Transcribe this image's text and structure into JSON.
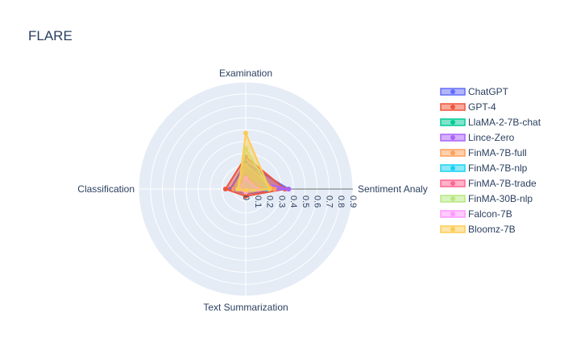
{
  "chart_data": {
    "type": "radar",
    "title": "FLARE",
    "axes": [
      "Sentiment Analysis",
      "Examination",
      "Classification",
      "Text Summarization"
    ],
    "axis_display": [
      "Sentiment Analy",
      "Examination",
      "Classification",
      "Text Summarization"
    ],
    "radial_range": [
      0,
      0.9
    ],
    "radial_ticks": [
      "0",
      "0.1",
      "0.2",
      "0.3",
      "0.4",
      "0.5",
      "0.6",
      "0.7",
      "0.8",
      "0.9"
    ],
    "legend_position": "right",
    "series": [
      {
        "name": "ChatGPT",
        "color": "#636efa",
        "values": [
          0.36,
          0.22,
          0.13,
          0.04
        ]
      },
      {
        "name": "GPT-4",
        "color": "#EF553B",
        "values": [
          0.33,
          0.27,
          0.17,
          0.06
        ]
      },
      {
        "name": "LlaMA-2-7B-chat",
        "color": "#00cc96",
        "values": [
          0.1,
          0.05,
          0.06,
          0.01
        ]
      },
      {
        "name": "Lince-Zero",
        "color": "#ab63fa",
        "values": [
          0.36,
          0.08,
          0.09,
          0.02
        ]
      },
      {
        "name": "FinMA-7B-full",
        "color": "#FFA15A",
        "values": [
          0.24,
          0.2,
          0.1,
          0.03
        ]
      },
      {
        "name": "FinMA-7B-nlp",
        "color": "#19d3f3",
        "values": [
          0.18,
          0.04,
          0.05,
          0.01
        ]
      },
      {
        "name": "FinMA-7B-trade",
        "color": "#FF6692",
        "values": [
          0.14,
          0.11,
          0.08,
          0.02
        ]
      },
      {
        "name": "FinMA-30B-nlp",
        "color": "#B6E880",
        "values": [
          0.2,
          0.34,
          0.07,
          0.02
        ]
      },
      {
        "name": "Falcon-7B",
        "color": "#FF97FF",
        "values": [
          0.1,
          0.09,
          0.05,
          0.02
        ]
      },
      {
        "name": "Bloomz-7B",
        "color": "#FECB52",
        "values": [
          0.2,
          0.47,
          0.06,
          0.01
        ]
      }
    ]
  }
}
